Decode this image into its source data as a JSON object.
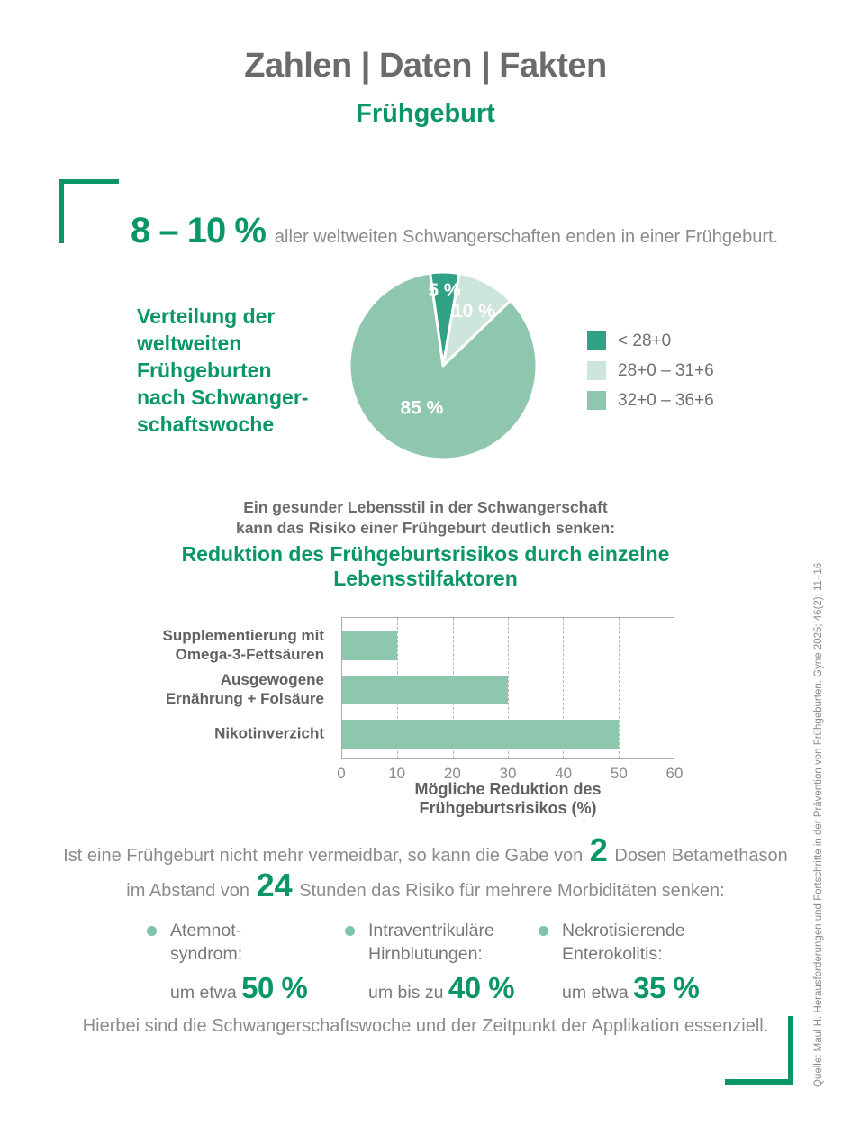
{
  "header": {
    "title": "Zahlen | Daten | Fakten",
    "subtitle": "Frühgeburt"
  },
  "stat": {
    "value": "8 – 10 %",
    "text": "aller weltweiten Schwangerschaften enden in einer Frühgeburt."
  },
  "pie_section": {
    "title": "Verteilung der\nweltweiten\nFrühgeburten\nnach Schwanger-\nschaftswoche"
  },
  "lifestyle": {
    "intro": "Ein gesunder Lebensstil in der Schwangerschaft\nkann das Risiko einer Frühgeburt deutlich senken:",
    "title": "Reduktion des Frühgeburtsrisikos durch einzelne\nLebensstilfaktoren"
  },
  "chart_data": [
    {
      "type": "pie",
      "title": "Verteilung der weltweiten Frühgeburten nach Schwangerschaftswoche",
      "slices": [
        {
          "value": 5,
          "label": "5 %",
          "legend": "< 28+0",
          "color": "#30a185"
        },
        {
          "value": 10,
          "label": "10 %",
          "legend": "28+0 – 31+6",
          "color": "#cde5da"
        },
        {
          "value": 85,
          "label": "85 %",
          "legend": "32+0 – 36+6",
          "color": "#8fc6ae"
        }
      ],
      "start_angle_deg": -8,
      "legend_position": "right",
      "label_color": "#ffffff"
    },
    {
      "type": "bar",
      "orientation": "horizontal",
      "title": "Reduktion des Frühgeburtsrisikos durch einzelne Lebensstilfaktoren",
      "categories": [
        "Supplementierung mit Omega-3-Fettsäuren",
        "Ausgewogene Ernährung + Folsäure",
        "Nikotinverzicht"
      ],
      "category_lines": [
        [
          "Supplementierung mit",
          "Omega-3-Fettsäuren"
        ],
        [
          "Ausgewogene",
          "Ernährung + Folsäure"
        ],
        [
          "Nikotinverzicht"
        ]
      ],
      "values": [
        10,
        30,
        50
      ],
      "xlabel": "Mögliche Reduktion des Frühgeburtsrisikos (%)",
      "xlim": [
        0,
        60
      ],
      "xticks": [
        0,
        10,
        20,
        30,
        40,
        50,
        60
      ],
      "grid": "vertical-dashed",
      "bar_color": "#8fc6ae"
    }
  ],
  "betamethason": {
    "line1_pre": "Ist eine Frühgeburt nicht mehr vermeidbar, so kann die Gabe von ",
    "line1_big": "2",
    "line1_post": " Dosen Betamethason",
    "line2_pre": "im Abstand von ",
    "line2_big": "24",
    "line2_post": " Stunden das Risiko für mehrere Morbiditäten senken:"
  },
  "morbidities": [
    {
      "label": "Atemnot-\nsyndrom:",
      "prefix": "um etwa ",
      "value": "50 %"
    },
    {
      "label": "Intraventrikuläre\nHirnblutungen:",
      "prefix": "um bis zu ",
      "value": "40 %"
    },
    {
      "label": "Nekrotisierende\nEnterokolitis:",
      "prefix": "um etwa ",
      "value": "35 %"
    }
  ],
  "footer": {
    "note": "Hierbei sind die Schwangerschaftswoche und der Zeitpunkt der Applikation essenziell.",
    "source": "Quelle: Maul H. Herausforderungen und Fortschritte in der Prävention von Frühgeburten. Gyne 2025; 46(2): 11–16"
  },
  "colors": {
    "brand_green": "#0b9668",
    "pie_dark": "#30a185",
    "pie_light": "#cde5da",
    "pie_medium": "#8fc6ae",
    "bar_green": "#8fc6ae",
    "bullet_dot": "#7fc3a9",
    "heading_gray": "#6a6b6d",
    "body_gray": "#8a8b8d"
  }
}
